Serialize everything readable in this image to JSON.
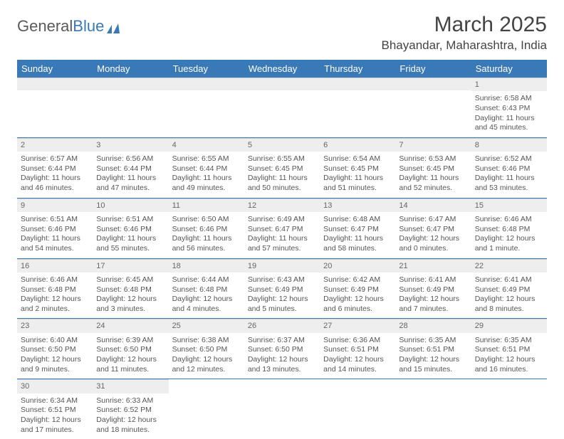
{
  "logo": {
    "text_gray": "General",
    "text_blue": "Blue"
  },
  "title": "March 2025",
  "location": "Bhayandar, Maharashtra, India",
  "colors": {
    "header_bg": "#3a79b7",
    "header_text": "#ffffff",
    "daynum_bg": "#eeeeee",
    "week_divider": "#3a79b7",
    "text": "#555555"
  },
  "day_names": [
    "Sunday",
    "Monday",
    "Tuesday",
    "Wednesday",
    "Thursday",
    "Friday",
    "Saturday"
  ],
  "weeks": [
    [
      {
        "empty": true
      },
      {
        "empty": true
      },
      {
        "empty": true
      },
      {
        "empty": true
      },
      {
        "empty": true
      },
      {
        "empty": true
      },
      {
        "day": "1",
        "sunrise": "Sunrise: 6:58 AM",
        "sunset": "Sunset: 6:43 PM",
        "daylight": "Daylight: 11 hours and 45 minutes."
      }
    ],
    [
      {
        "day": "2",
        "sunrise": "Sunrise: 6:57 AM",
        "sunset": "Sunset: 6:44 PM",
        "daylight": "Daylight: 11 hours and 46 minutes."
      },
      {
        "day": "3",
        "sunrise": "Sunrise: 6:56 AM",
        "sunset": "Sunset: 6:44 PM",
        "daylight": "Daylight: 11 hours and 47 minutes."
      },
      {
        "day": "4",
        "sunrise": "Sunrise: 6:55 AM",
        "sunset": "Sunset: 6:44 PM",
        "daylight": "Daylight: 11 hours and 49 minutes."
      },
      {
        "day": "5",
        "sunrise": "Sunrise: 6:55 AM",
        "sunset": "Sunset: 6:45 PM",
        "daylight": "Daylight: 11 hours and 50 minutes."
      },
      {
        "day": "6",
        "sunrise": "Sunrise: 6:54 AM",
        "sunset": "Sunset: 6:45 PM",
        "daylight": "Daylight: 11 hours and 51 minutes."
      },
      {
        "day": "7",
        "sunrise": "Sunrise: 6:53 AM",
        "sunset": "Sunset: 6:45 PM",
        "daylight": "Daylight: 11 hours and 52 minutes."
      },
      {
        "day": "8",
        "sunrise": "Sunrise: 6:52 AM",
        "sunset": "Sunset: 6:46 PM",
        "daylight": "Daylight: 11 hours and 53 minutes."
      }
    ],
    [
      {
        "day": "9",
        "sunrise": "Sunrise: 6:51 AM",
        "sunset": "Sunset: 6:46 PM",
        "daylight": "Daylight: 11 hours and 54 minutes."
      },
      {
        "day": "10",
        "sunrise": "Sunrise: 6:51 AM",
        "sunset": "Sunset: 6:46 PM",
        "daylight": "Daylight: 11 hours and 55 minutes."
      },
      {
        "day": "11",
        "sunrise": "Sunrise: 6:50 AM",
        "sunset": "Sunset: 6:46 PM",
        "daylight": "Daylight: 11 hours and 56 minutes."
      },
      {
        "day": "12",
        "sunrise": "Sunrise: 6:49 AM",
        "sunset": "Sunset: 6:47 PM",
        "daylight": "Daylight: 11 hours and 57 minutes."
      },
      {
        "day": "13",
        "sunrise": "Sunrise: 6:48 AM",
        "sunset": "Sunset: 6:47 PM",
        "daylight": "Daylight: 11 hours and 58 minutes."
      },
      {
        "day": "14",
        "sunrise": "Sunrise: 6:47 AM",
        "sunset": "Sunset: 6:47 PM",
        "daylight": "Daylight: 12 hours and 0 minutes."
      },
      {
        "day": "15",
        "sunrise": "Sunrise: 6:46 AM",
        "sunset": "Sunset: 6:48 PM",
        "daylight": "Daylight: 12 hours and 1 minute."
      }
    ],
    [
      {
        "day": "16",
        "sunrise": "Sunrise: 6:46 AM",
        "sunset": "Sunset: 6:48 PM",
        "daylight": "Daylight: 12 hours and 2 minutes."
      },
      {
        "day": "17",
        "sunrise": "Sunrise: 6:45 AM",
        "sunset": "Sunset: 6:48 PM",
        "daylight": "Daylight: 12 hours and 3 minutes."
      },
      {
        "day": "18",
        "sunrise": "Sunrise: 6:44 AM",
        "sunset": "Sunset: 6:48 PM",
        "daylight": "Daylight: 12 hours and 4 minutes."
      },
      {
        "day": "19",
        "sunrise": "Sunrise: 6:43 AM",
        "sunset": "Sunset: 6:49 PM",
        "daylight": "Daylight: 12 hours and 5 minutes."
      },
      {
        "day": "20",
        "sunrise": "Sunrise: 6:42 AM",
        "sunset": "Sunset: 6:49 PM",
        "daylight": "Daylight: 12 hours and 6 minutes."
      },
      {
        "day": "21",
        "sunrise": "Sunrise: 6:41 AM",
        "sunset": "Sunset: 6:49 PM",
        "daylight": "Daylight: 12 hours and 7 minutes."
      },
      {
        "day": "22",
        "sunrise": "Sunrise: 6:41 AM",
        "sunset": "Sunset: 6:49 PM",
        "daylight": "Daylight: 12 hours and 8 minutes."
      }
    ],
    [
      {
        "day": "23",
        "sunrise": "Sunrise: 6:40 AM",
        "sunset": "Sunset: 6:50 PM",
        "daylight": "Daylight: 12 hours and 9 minutes."
      },
      {
        "day": "24",
        "sunrise": "Sunrise: 6:39 AM",
        "sunset": "Sunset: 6:50 PM",
        "daylight": "Daylight: 12 hours and 11 minutes."
      },
      {
        "day": "25",
        "sunrise": "Sunrise: 6:38 AM",
        "sunset": "Sunset: 6:50 PM",
        "daylight": "Daylight: 12 hours and 12 minutes."
      },
      {
        "day": "26",
        "sunrise": "Sunrise: 6:37 AM",
        "sunset": "Sunset: 6:50 PM",
        "daylight": "Daylight: 12 hours and 13 minutes."
      },
      {
        "day": "27",
        "sunrise": "Sunrise: 6:36 AM",
        "sunset": "Sunset: 6:51 PM",
        "daylight": "Daylight: 12 hours and 14 minutes."
      },
      {
        "day": "28",
        "sunrise": "Sunrise: 6:35 AM",
        "sunset": "Sunset: 6:51 PM",
        "daylight": "Daylight: 12 hours and 15 minutes."
      },
      {
        "day": "29",
        "sunrise": "Sunrise: 6:35 AM",
        "sunset": "Sunset: 6:51 PM",
        "daylight": "Daylight: 12 hours and 16 minutes."
      }
    ],
    [
      {
        "day": "30",
        "sunrise": "Sunrise: 6:34 AM",
        "sunset": "Sunset: 6:51 PM",
        "daylight": "Daylight: 12 hours and 17 minutes."
      },
      {
        "day": "31",
        "sunrise": "Sunrise: 6:33 AM",
        "sunset": "Sunset: 6:52 PM",
        "daylight": "Daylight: 12 hours and 18 minutes."
      },
      {
        "empty": true
      },
      {
        "empty": true
      },
      {
        "empty": true
      },
      {
        "empty": true
      },
      {
        "empty": true
      }
    ]
  ]
}
